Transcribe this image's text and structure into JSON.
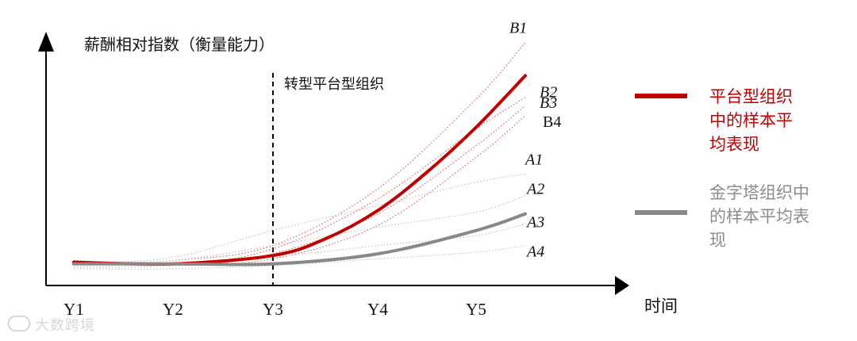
{
  "chart_data": {
    "type": "line",
    "ylabel": "薪酬相对指数（衡量能力）",
    "xlabel": "时间",
    "categories": [
      "Y1",
      "Y2",
      "Y3",
      "Y4",
      "Y5"
    ],
    "vline": {
      "x": "Y3",
      "label": "转型平台型组织"
    },
    "colors": {
      "red": "#c00000",
      "red_light": "#e06060",
      "gray": "#888888",
      "gray_light": "#bfbfbf"
    },
    "series": [
      {
        "name": "平台型组织中的样本平均表现",
        "group": "platform",
        "role": "average",
        "points": [
          [
            0.0,
            0.14
          ],
          [
            1.0,
            0.13
          ],
          [
            2.0,
            0.18
          ],
          [
            2.5,
            0.28
          ],
          [
            3.0,
            0.45
          ],
          [
            3.5,
            0.68
          ],
          [
            4.0,
            0.95
          ],
          [
            4.5,
            1.26
          ]
        ]
      },
      {
        "name": "B1",
        "group": "platform",
        "role": "sample",
        "points": [
          [
            0.0,
            0.13
          ],
          [
            1.0,
            0.15
          ],
          [
            2.0,
            0.24
          ],
          [
            3.0,
            0.58
          ],
          [
            4.0,
            1.12
          ],
          [
            4.5,
            1.46
          ]
        ]
      },
      {
        "name": "B2",
        "group": "platform",
        "role": "sample",
        "points": [
          [
            0.0,
            0.15
          ],
          [
            1.0,
            0.12
          ],
          [
            2.0,
            0.22
          ],
          [
            3.0,
            0.52
          ],
          [
            4.0,
            0.94
          ],
          [
            4.5,
            1.13
          ]
        ]
      },
      {
        "name": "B3",
        "group": "platform",
        "role": "sample",
        "points": [
          [
            0.0,
            0.13
          ],
          [
            1.0,
            0.13
          ],
          [
            2.0,
            0.19
          ],
          [
            3.0,
            0.43
          ],
          [
            4.0,
            0.84
          ],
          [
            4.5,
            1.08
          ]
        ]
      },
      {
        "name": "B4",
        "group": "platform",
        "role": "sample",
        "points": [
          [
            0.0,
            0.15
          ],
          [
            1.0,
            0.12
          ],
          [
            2.0,
            0.16
          ],
          [
            3.0,
            0.36
          ],
          [
            4.0,
            0.77
          ],
          [
            4.5,
            1.02
          ]
        ]
      },
      {
        "name": "金字塔组织中的样本平均表现",
        "group": "pyramid",
        "role": "average",
        "points": [
          [
            0.0,
            0.13
          ],
          [
            1.0,
            0.13
          ],
          [
            2.0,
            0.13
          ],
          [
            3.0,
            0.19
          ],
          [
            4.0,
            0.33
          ],
          [
            4.5,
            0.43
          ]
        ]
      },
      {
        "name": "A1",
        "group": "pyramid",
        "role": "sample",
        "points": [
          [
            0.0,
            0.13
          ],
          [
            1.0,
            0.17
          ],
          [
            2.0,
            0.33
          ],
          [
            3.0,
            0.48
          ],
          [
            4.0,
            0.62
          ],
          [
            4.5,
            0.67
          ]
        ]
      },
      {
        "name": "A2",
        "group": "pyramid",
        "role": "sample",
        "points": [
          [
            0.0,
            0.13
          ],
          [
            1.0,
            0.15
          ],
          [
            2.0,
            0.24
          ],
          [
            3.0,
            0.35
          ],
          [
            4.0,
            0.44
          ],
          [
            4.5,
            0.54
          ]
        ]
      },
      {
        "name": "A3",
        "group": "pyramid",
        "role": "sample",
        "points": [
          [
            0.0,
            0.11
          ],
          [
            1.0,
            0.12
          ],
          [
            2.0,
            0.17
          ],
          [
            3.0,
            0.24
          ],
          [
            4.0,
            0.3
          ],
          [
            4.5,
            0.37
          ]
        ]
      },
      {
        "name": "A4",
        "group": "pyramid",
        "role": "sample",
        "points": [
          [
            0.0,
            0.1
          ],
          [
            1.0,
            0.1
          ],
          [
            2.0,
            0.12
          ],
          [
            3.0,
            0.16
          ],
          [
            4.0,
            0.2
          ],
          [
            4.5,
            0.24
          ]
        ]
      }
    ],
    "legend": [
      "平台型组织中的样本平均表现",
      "金字塔组织中的样本平均表现"
    ],
    "legend_lines": {
      "platform": "平台型组织\n中的样本平\n均表现",
      "pyramid": "金字塔组织中\n的样本平均表\n现"
    },
    "legend_position": "right",
    "grid": false
  },
  "watermark": "大数跨境"
}
